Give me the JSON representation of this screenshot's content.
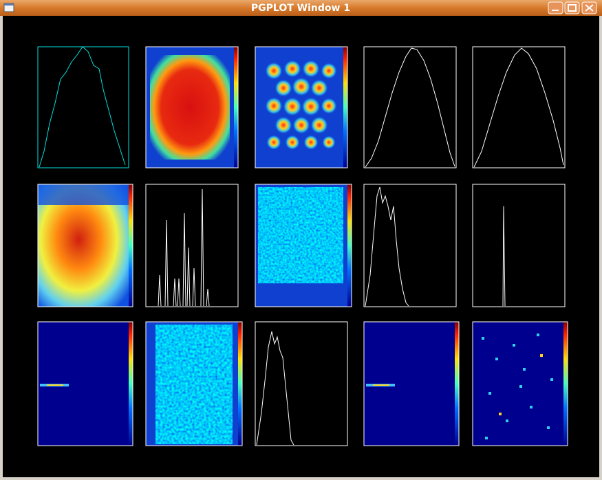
{
  "window": {
    "title": "PGPLOT Window 1"
  }
}
